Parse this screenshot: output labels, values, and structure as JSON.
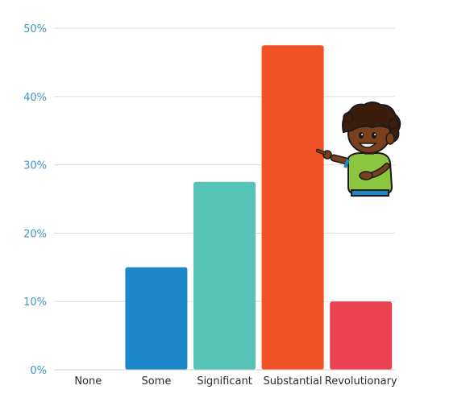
{
  "chart_data": {
    "type": "bar",
    "categories": [
      "None",
      "Some",
      "Significant",
      "Substantial",
      "Revolutionary"
    ],
    "values": [
      0,
      15,
      27.5,
      47.5,
      10
    ],
    "colors": [
      "#1c87c9",
      "#1c87c9",
      "#55c4b6",
      "#f05125",
      "#ec4150"
    ],
    "ylim": [
      0,
      50
    ],
    "yticks": [
      0,
      10,
      20,
      30,
      40,
      50
    ],
    "ytick_labels": [
      "0%",
      "10%",
      "20%",
      "30%",
      "40%",
      "50%"
    ],
    "tick_color": "#3f96c9",
    "grid": true,
    "grid_color": "#dddddd",
    "legend": "none"
  },
  "illustration": {
    "icon": "cartoon-boy-pointing-icon"
  }
}
